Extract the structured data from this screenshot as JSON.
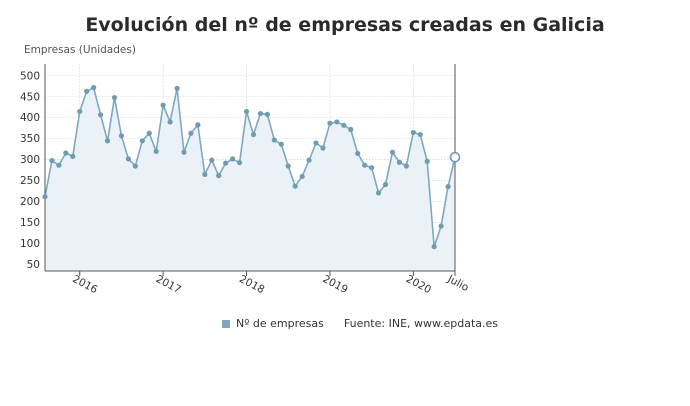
{
  "chart_data": {
    "type": "area",
    "title": "Evolución del nº de empresas creadas en Galicia",
    "ylabel": "Empresas (Unidades)",
    "ylim": [
      35,
      528
    ],
    "yticks": [
      50,
      100,
      150,
      200,
      250,
      300,
      350,
      400,
      450,
      500
    ],
    "x_tick_labels": [
      "2016",
      "2017",
      "2018",
      "2019",
      "2020",
      "Julio"
    ],
    "x_tick_index": [
      5,
      17,
      29,
      41,
      53,
      59
    ],
    "grid": true,
    "legend_position": "bottom",
    "series": [
      {
        "name": "Nº de empresas",
        "values": [
          212,
          298,
          287,
          316,
          308,
          415,
          463,
          472,
          407,
          345,
          448,
          357,
          302,
          285,
          345,
          363,
          320,
          430,
          390,
          470,
          318,
          363,
          383,
          265,
          299,
          262,
          292,
          302,
          293,
          415,
          360,
          410,
          408,
          347,
          337,
          285,
          237,
          260,
          299,
          340,
          328,
          387,
          390,
          382,
          372,
          315,
          287,
          281,
          221,
          241,
          318,
          294,
          285,
          365,
          360,
          296,
          93,
          142,
          236,
          306
        ]
      }
    ],
    "colors": {
      "line": "#7fa8be",
      "marker": "#6f9cb3",
      "fill": "#eaf2f7",
      "grid": "#cccccc",
      "axis": "#555555"
    }
  },
  "legend": {
    "label": "Nº de empresas"
  },
  "footer": {
    "source": "Fuente: INE, www.epdata.es"
  }
}
